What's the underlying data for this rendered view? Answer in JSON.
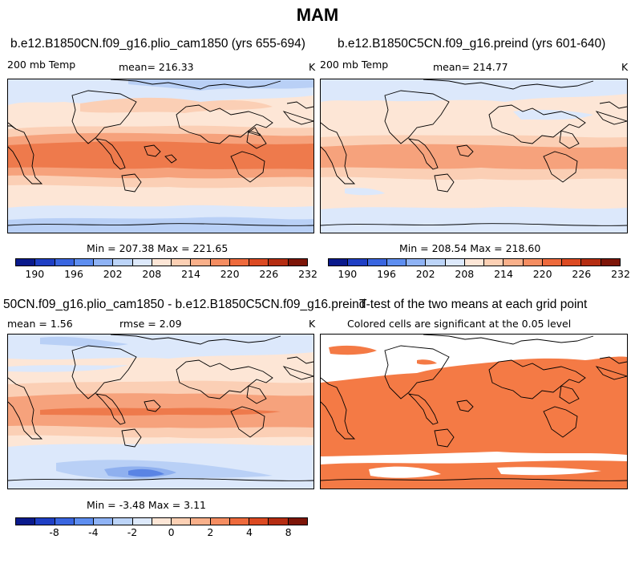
{
  "figure_title": "MAM",
  "panels": {
    "top_left": {
      "title": "b.e12.B1850CN.f09_g16.plio_cam1850 (yrs 655-694)",
      "variable": "200 mb Temp",
      "mean": "mean= 216.33",
      "units": "K",
      "minmax": "Min = 207.38 Max = 221.65"
    },
    "top_right": {
      "title": "b.e12.B1850C5CN.f09_g16.preind (yrs 601-640)",
      "variable": "200 mb Temp",
      "mean": "mean= 214.77",
      "units": "K",
      "minmax": "Min = 208.54 Max = 218.60"
    },
    "bottom_left": {
      "title": "50CN.f09_g16.plio_cam1850 - b.e12.B1850C5CN.f09_g16.preind",
      "mean": "mean =    1.56",
      "rmse": "rmse =    2.09",
      "units": "K",
      "minmax": "Min =  -3.48 Max =    3.11"
    },
    "bottom_right": {
      "title": "T-test of the two means at each grid point",
      "subtitle": "Colored cells are significant at the 0.05 level"
    }
  },
  "colorbar_abs": {
    "labels": [
      "190",
      "196",
      "202",
      "208",
      "214",
      "220",
      "226",
      "232"
    ],
    "colors": [
      "#0a1a8c",
      "#1f3fc4",
      "#3a66e0",
      "#5e8ef0",
      "#8fb3f5",
      "#bcd4f8",
      "#dde9fb",
      "#fde6d6",
      "#fcd0b4",
      "#f9b08a",
      "#f58d61",
      "#ee6a3c",
      "#dc4a22",
      "#b52d12",
      "#7d1508"
    ]
  },
  "colorbar_diff": {
    "labels": [
      "-8",
      "-4",
      "-2",
      "0",
      "2",
      "4",
      "8"
    ],
    "colors": [
      "#0a1a8c",
      "#1f3fc4",
      "#3a66e0",
      "#5e8ef0",
      "#8fb3f5",
      "#bcd4f8",
      "#dde9fb",
      "#fde6d6",
      "#fcd0b4",
      "#f9b08a",
      "#f58d61",
      "#ee6a3c",
      "#dc4a22",
      "#b52d12",
      "#7d1508"
    ]
  },
  "fill_colors": {
    "deep_red": "#ee7a4c",
    "mid_red": "#f6a27c",
    "light_red": "#fbcfb5",
    "pale_red": "#fde6d6",
    "pale_blue": "#dce8fb",
    "light_blue": "#b9d0f6",
    "mid_blue": "#8fb0ef",
    "deep_blue": "#5a84e4",
    "significant": "#f47a45"
  }
}
